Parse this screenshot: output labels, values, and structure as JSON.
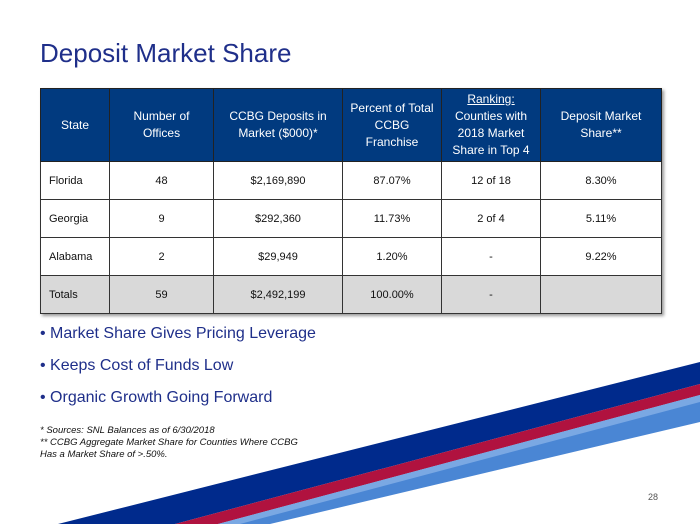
{
  "title": "Deposit Market Share",
  "table": {
    "headers": [
      "State",
      "Number of Offices",
      "CCBG Deposits in Market ($000)*",
      "Percent of Total CCBG Franchise",
      "Ranking:",
      "Counties with 2018 Market Share in Top 4",
      "Deposit Market Share**"
    ],
    "rows": [
      [
        "Florida",
        "48",
        "$2,169,890",
        "87.07%",
        "12 of 18",
        "8.30%"
      ],
      [
        "Georgia",
        "9",
        "$292,360",
        "11.73%",
        "2 of 4",
        "5.11%"
      ],
      [
        "Alabama",
        "2",
        "$29,949",
        "1.20%",
        "-",
        "9.22%"
      ],
      [
        "Totals",
        "59",
        "$2,492,199",
        "100.00%",
        "-",
        ""
      ]
    ]
  },
  "bullets": [
    "• Market Share Gives Pricing Leverage",
    "• Keeps Cost of Funds Low",
    "• Organic Growth Going Forward"
  ],
  "notes": [
    "* Sources: SNL Balances as of 6/30/2018",
    "** CCBG Aggregate Market Share for Counties Where CCBG",
    "Has a Market Share of >.50%."
  ],
  "page_number": "28",
  "colors": {
    "navy": "#002a8c",
    "red": "#b0123f",
    "blue": "#4a86d4"
  }
}
